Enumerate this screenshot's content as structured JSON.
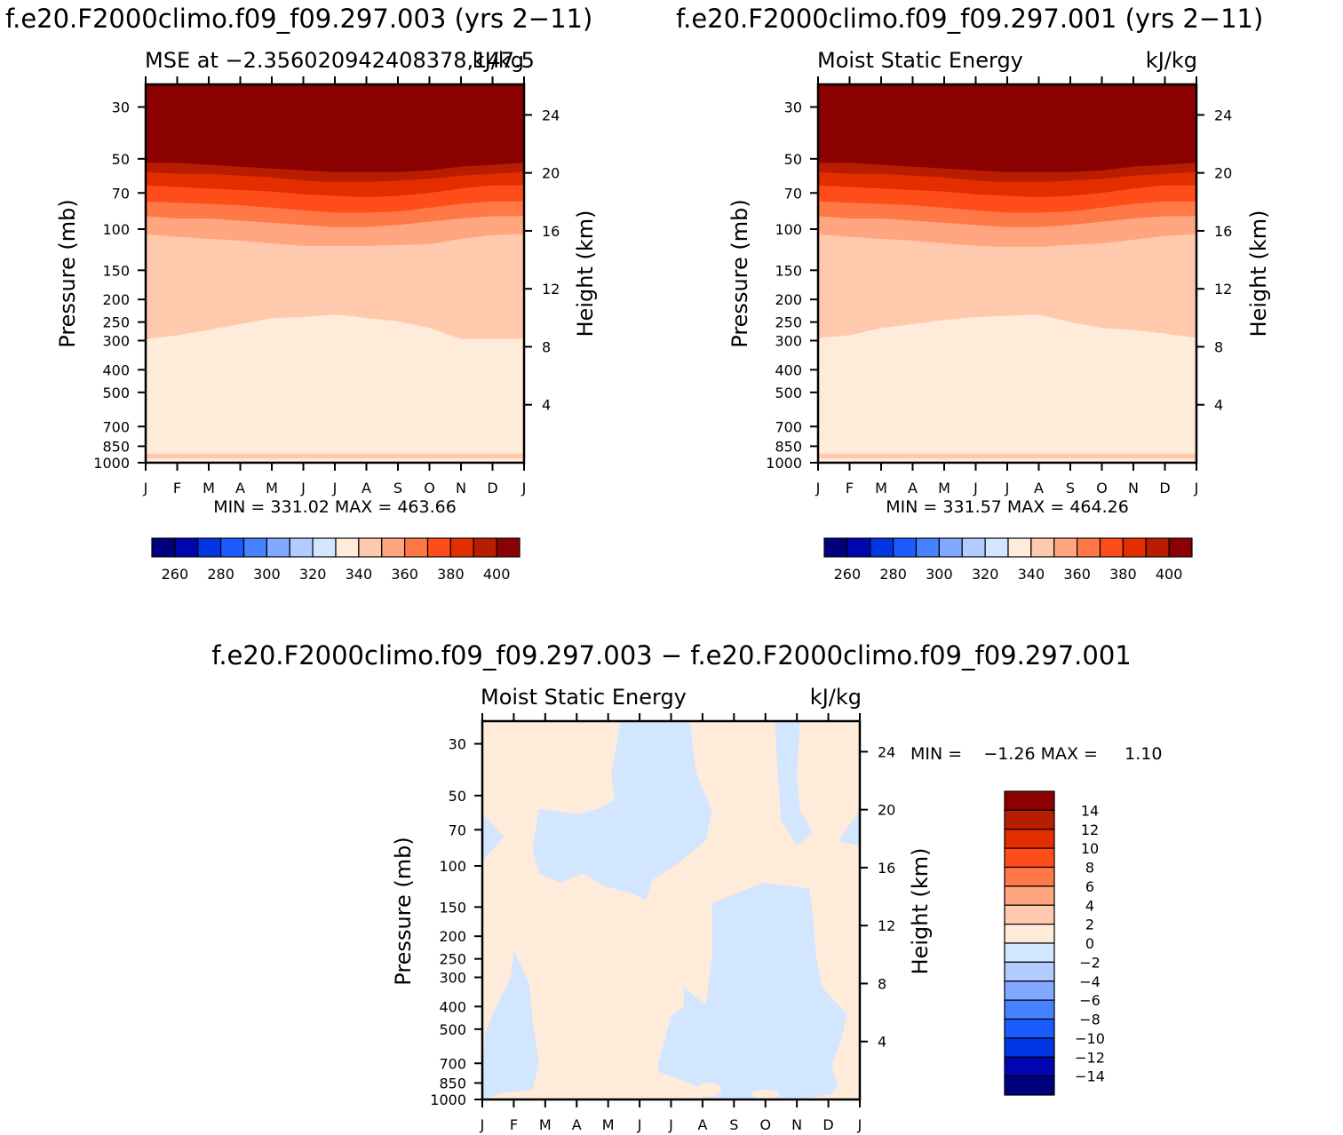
{
  "figure": {
    "panel_a_header": "f.e20.F2000climo.f09_f09.297.003 (yrs 2−11)",
    "panel_b_header": "f.e20.F2000climo.f09_f09.297.001 (yrs 2−11)",
    "diff_header": "f.e20.F2000climo.f09_f09.297.003 − f.e20.F2000climo.f09_f09.297.001"
  },
  "colors": {
    "mse_levels": [
      "#00007f",
      "#0005b0",
      "#0036e4",
      "#1b5bff",
      "#4681ff",
      "#82a8ff",
      "#b4cbff",
      "#d3e6ff",
      "#ffebd9",
      "#ffc9ad",
      "#ffa680",
      "#ff7847",
      "#ff4d1a",
      "#e52e00",
      "#b81d00",
      "#8b0000"
    ],
    "diff_levels": [
      "#00007f",
      "#0005b0",
      "#0036e4",
      "#1b5bff",
      "#4681ff",
      "#82a8ff",
      "#b4cbff",
      "#d3e6ff",
      "#ffebd9",
      "#ffc9ad",
      "#ffa680",
      "#ff7847",
      "#ff4d1a",
      "#e52e00",
      "#b81d00",
      "#8b0000"
    ]
  },
  "chart_data": [
    {
      "type": "heatmap",
      "title_left": "MSE at −2.356020942408378,147.5",
      "title_right": "kJ/kg",
      "xlabel": "",
      "ylabel": "Pressure (mb)",
      "ylabel_right": "Height (km)",
      "x_ticks": [
        "J",
        "F",
        "M",
        "A",
        "M",
        "J",
        "J",
        "A",
        "S",
        "O",
        "N",
        "D",
        "J"
      ],
      "y_ticks": [
        "30",
        "50",
        "70",
        "100",
        "150",
        "200",
        "250",
        "300",
        "400",
        "500",
        "700",
        "850",
        "1000"
      ],
      "y_ticks_right": [
        "24",
        "20",
        "16",
        "12",
        "8",
        "4"
      ],
      "ylim": [
        1000,
        24
      ],
      "y_scale": "log",
      "stats": "MIN = 331.02 MAX = 463.66",
      "colorbar_labels": [
        "260",
        "280",
        "300",
        "320",
        "340",
        "360",
        "380",
        "400"
      ],
      "contour_boundaries_mb": [
        {
          "level": "340-350",
          "pressure": [
            295,
            285,
            270,
            255,
            240,
            238,
            232,
            240,
            248,
            265,
            295,
            295,
            295
          ]
        },
        {
          "level": "350-360",
          "pressure": [
            105,
            108,
            110,
            112,
            115,
            118,
            118,
            118,
            117,
            116,
            110,
            106,
            105
          ]
        },
        {
          "level": "360-370",
          "pressure": [
            88,
            90,
            90,
            92,
            94,
            96,
            98,
            98,
            96,
            93,
            90,
            88,
            88
          ]
        },
        {
          "level": "370-380",
          "pressure": [
            76,
            77,
            78,
            79,
            81,
            83,
            85,
            85,
            84,
            81,
            78,
            76,
            76
          ]
        },
        {
          "level": "380-390",
          "pressure": [
            65,
            66,
            67,
            68,
            69,
            71,
            72,
            73,
            72,
            70,
            67,
            65,
            65
          ]
        },
        {
          "level": "390-400",
          "pressure": [
            57,
            58,
            58,
            59,
            60,
            62,
            63,
            63,
            62,
            61,
            59,
            58,
            57
          ]
        },
        {
          "level": ">400",
          "pressure": [
            52,
            52,
            53,
            54,
            55,
            56,
            57,
            57,
            57,
            56,
            54,
            53,
            52
          ]
        }
      ]
    },
    {
      "type": "heatmap",
      "title_left": "Moist Static Energy",
      "title_right": "kJ/kg",
      "xlabel": "",
      "ylabel": "Pressure (mb)",
      "ylabel_right": "Height (km)",
      "x_ticks": [
        "J",
        "F",
        "M",
        "A",
        "M",
        "J",
        "J",
        "A",
        "S",
        "O",
        "N",
        "D",
        "J"
      ],
      "y_ticks": [
        "30",
        "50",
        "70",
        "100",
        "150",
        "200",
        "250",
        "300",
        "400",
        "500",
        "700",
        "850",
        "1000"
      ],
      "y_ticks_right": [
        "24",
        "20",
        "16",
        "12",
        "8",
        "4"
      ],
      "ylim": [
        1000,
        24
      ],
      "y_scale": "log",
      "stats": "MIN = 331.57 MAX = 464.26",
      "colorbar_labels": [
        "260",
        "280",
        "300",
        "320",
        "340",
        "360",
        "380",
        "400"
      ],
      "contour_boundaries_mb": [
        {
          "level": "340-350",
          "pressure": [
            292,
            285,
            265,
            255,
            245,
            238,
            235,
            232,
            250,
            265,
            270,
            280,
            292
          ]
        },
        {
          "level": "350-360",
          "pressure": [
            105,
            108,
            110,
            112,
            115,
            118,
            119,
            119,
            117,
            115,
            111,
            107,
            105
          ]
        },
        {
          "level": "360-370",
          "pressure": [
            88,
            90,
            90,
            92,
            94,
            96,
            98,
            98,
            96,
            93,
            90,
            88,
            88
          ]
        },
        {
          "level": "370-380",
          "pressure": [
            76,
            77,
            78,
            79,
            81,
            83,
            85,
            85,
            84,
            81,
            78,
            76,
            76
          ]
        },
        {
          "level": "380-390",
          "pressure": [
            65,
            66,
            67,
            68,
            69,
            71,
            72,
            73,
            72,
            70,
            67,
            65,
            65
          ]
        },
        {
          "level": "390-400",
          "pressure": [
            57,
            58,
            58,
            59,
            60,
            62,
            63,
            63,
            62,
            61,
            59,
            58,
            57
          ]
        },
        {
          "level": ">400",
          "pressure": [
            52,
            52,
            53,
            54,
            55,
            56,
            57,
            57,
            57,
            56,
            54,
            53,
            52
          ]
        }
      ]
    },
    {
      "type": "heatmap",
      "title_left": "Moist Static Energy",
      "title_right": "kJ/kg",
      "xlabel": "",
      "ylabel": "Pressure (mb)",
      "ylabel_right": "Height (km)",
      "x_ticks": [
        "J",
        "F",
        "M",
        "A",
        "M",
        "J",
        "J",
        "A",
        "S",
        "O",
        "N",
        "D",
        "J"
      ],
      "y_ticks": [
        "30",
        "50",
        "70",
        "100",
        "150",
        "200",
        "250",
        "300",
        "400",
        "500",
        "700",
        "850",
        "1000"
      ],
      "y_ticks_right": [
        "24",
        "20",
        "16",
        "12",
        "8",
        "4"
      ],
      "ylim": [
        1000,
        24
      ],
      "y_scale": "log",
      "stats": "MIN =    −1.26 MAX =     1.10",
      "colorbar_labels": [
        "14",
        "12",
        "10",
        "8",
        "6",
        "4",
        "2",
        "0",
        "−2",
        "−4",
        "−6",
        "−8",
        "−10",
        "−12",
        "−14"
      ],
      "regions": [
        {
          "range": "0 to 2",
          "where": "background (positive anomaly)"
        },
        {
          "range": "-2 to 0",
          "where": "upper-left tongue (F to Jun, 24–150 mb)"
        },
        {
          "range": "-2 to 0",
          "where": "lower-right block (Jun to Nov, 150–1000 mb)"
        },
        {
          "range": "-2 to 0",
          "where": "lower-left patch (J to F, 300–900 mb)"
        },
        {
          "range": "-2 to 0",
          "where": "upper-right strip (Oct to Nov, 24–80 mb)"
        }
      ]
    }
  ]
}
